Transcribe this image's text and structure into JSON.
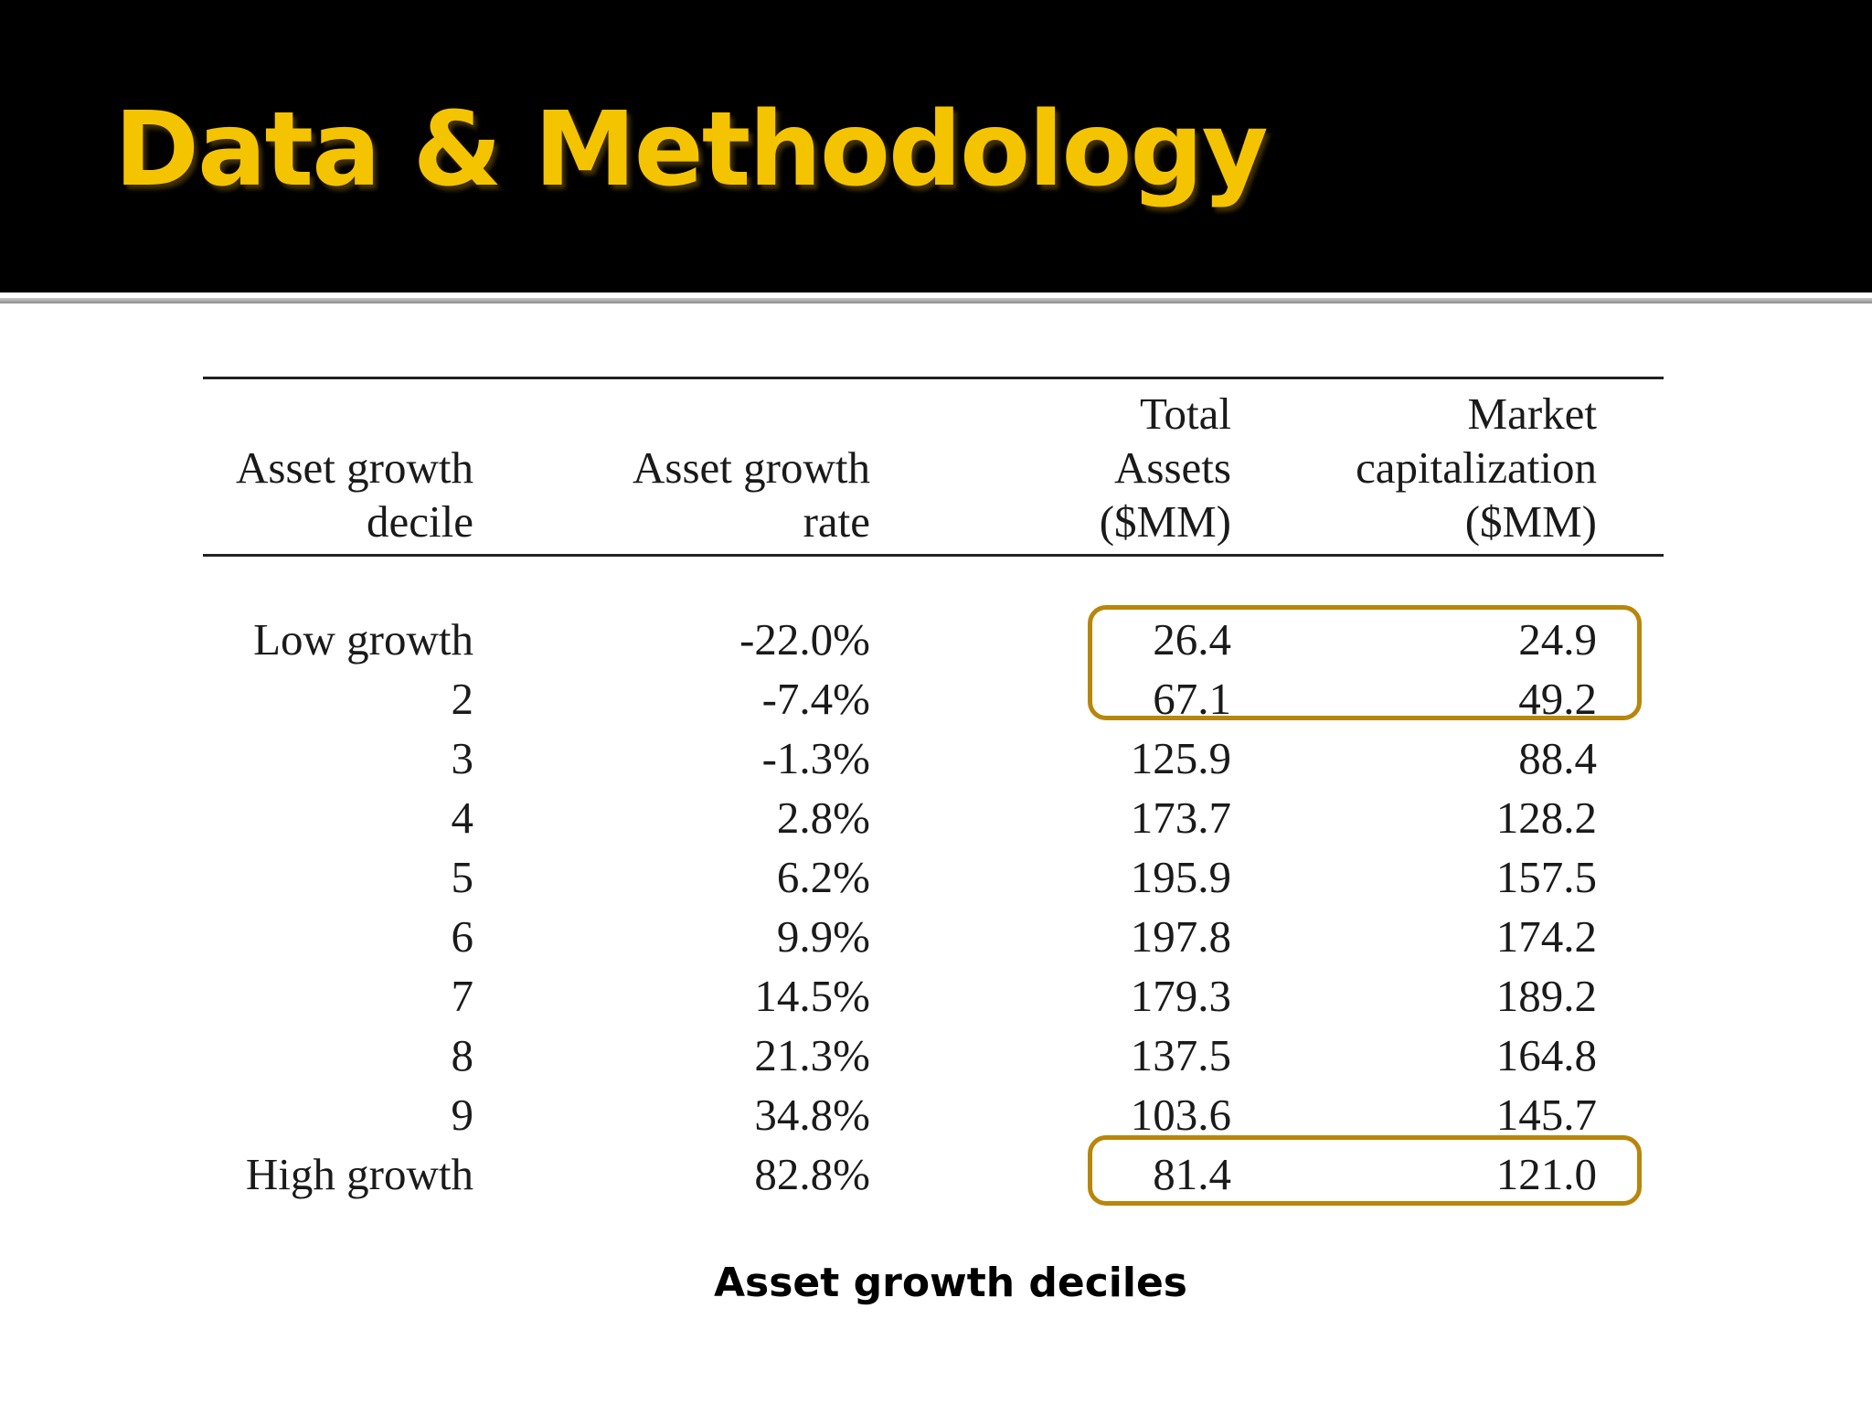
{
  "slide": {
    "title": "Data & Methodology"
  },
  "table": {
    "headers": [
      [
        "Asset growth",
        "decile"
      ],
      [
        "Asset growth",
        "rate"
      ],
      [
        "Total",
        "Assets",
        "($MM)"
      ],
      [
        "Market",
        "capitalization",
        "($MM)"
      ]
    ],
    "rows": [
      [
        "Low growth",
        "-22.0%",
        "26.4",
        "24.9"
      ],
      [
        "2",
        "-7.4%",
        "67.1",
        "49.2"
      ],
      [
        "3",
        "-1.3%",
        "125.9",
        "88.4"
      ],
      [
        "4",
        "2.8%",
        "173.7",
        "128.2"
      ],
      [
        "5",
        "6.2%",
        "195.9",
        "157.5"
      ],
      [
        "6",
        "9.9%",
        "197.8",
        "174.2"
      ],
      [
        "7",
        "14.5%",
        "179.3",
        "189.2"
      ],
      [
        "8",
        "21.3%",
        "137.5",
        "164.8"
      ],
      [
        "9",
        "34.8%",
        "103.6",
        "145.7"
      ],
      [
        "High growth",
        "82.8%",
        "81.4",
        "121.0"
      ]
    ]
  },
  "caption": "Asset growth deciles",
  "colors": {
    "title": "#f5c400",
    "title_bar": "#000000",
    "highlight": "#b8860b"
  }
}
